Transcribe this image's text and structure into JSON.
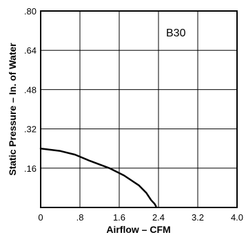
{
  "chart_data": {
    "type": "line",
    "annotation": "B30",
    "xlabel": "Airflow – CFM",
    "ylabel": "Static Pressure – In. of Water",
    "xlim": [
      0,
      4.0
    ],
    "ylim": [
      0,
      0.8
    ],
    "x_ticks": [
      "0",
      ".8",
      "1.6",
      "2.4",
      "3.2",
      "4.0"
    ],
    "y_ticks": [
      ".16",
      ".32",
      ".48",
      ".64",
      ".80"
    ],
    "grid": true,
    "series": [
      {
        "x": [
          0,
          0.4,
          0.7,
          1.0,
          1.4,
          1.7,
          2.0,
          2.15,
          2.25,
          2.32,
          2.35
        ],
        "y": [
          0.24,
          0.23,
          0.215,
          0.19,
          0.16,
          0.13,
          0.09,
          0.06,
          0.03,
          0.015,
          0.005
        ]
      }
    ]
  }
}
